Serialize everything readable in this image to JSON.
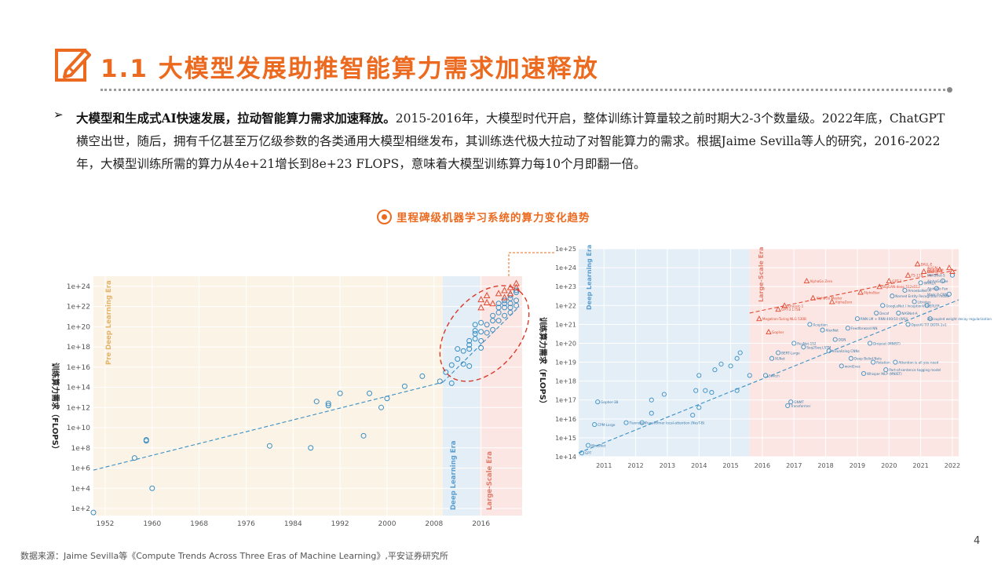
{
  "header": {
    "title": "1.1 大模型发展助推智能算力需求加速释放"
  },
  "intro": {
    "bold": "大模型和生成式AI快速发展，拉动智能算力需求加速释放。",
    "text": "2015-2016年，大模型时代开启，整体训练计算量较之前时期大2-3个数量级。2022年底，ChatGPT横空出世，随后，拥有千亿甚至万亿级参数的各类通用大模型相继发布，其训练迭代极大拉动了对智能算力的需求。根据Jaime Sevilla等人的研究，2016-2022年，大模型训练所需的算力从4e+21增长到8e+23 FLOPS，意味着大模型训练算力每10个月即翻一倍。"
  },
  "chart_title": "里程碑级机器学习系统的算力变化趋势",
  "colors": {
    "accent": "#ec6a1f",
    "blue": "#3a8fc4",
    "red": "#e04a33"
  },
  "chart_data": [
    {
      "type": "scatter",
      "ylabel": "训练算力需求（FLOPS）",
      "x_ticks": [
        "1952",
        "1960",
        "1968",
        "1976",
        "1984",
        "1992",
        "2000",
        "2008",
        "2016"
      ],
      "y_ticks": [
        "1e+2",
        "1e+4",
        "1e+6",
        "1e+8",
        "1e+10",
        "1e+12",
        "1e+14",
        "1e+16",
        "1e+18",
        "1e+20",
        "1e+22",
        "1e+24"
      ],
      "eras": [
        "Pre Deep Learning Era",
        "Deep Learning Era",
        "Large-Scale Era"
      ],
      "y_log10_range": [
        1.3,
        25
      ],
      "x_range": [
        1950,
        2023
      ],
      "pre_deep_learning": [
        [
          1950,
          1.6
        ],
        [
          1957,
          7
        ],
        [
          1959,
          8.7
        ],
        [
          1959,
          8.8
        ],
        [
          1960,
          4
        ],
        [
          1980,
          8.2
        ],
        [
          1987,
          8
        ],
        [
          1988,
          12.6
        ],
        [
          1990,
          12.2
        ],
        [
          1990,
          12.4
        ],
        [
          1992,
          13.4
        ],
        [
          1996,
          9.2
        ],
        [
          1997,
          13.4
        ],
        [
          1999,
          12
        ],
        [
          2000,
          12.9
        ],
        [
          2003,
          14.1
        ],
        [
          2006,
          15.1
        ]
      ],
      "deep_learning": [
        [
          2009,
          14.6
        ],
        [
          2010,
          15.5
        ],
        [
          2011,
          14.4
        ],
        [
          2011,
          16.2
        ],
        [
          2012,
          16.8
        ],
        [
          2012,
          17.8
        ],
        [
          2013,
          16.3
        ],
        [
          2013,
          17.6
        ],
        [
          2014,
          16.1
        ],
        [
          2014,
          17.8
        ],
        [
          2014,
          18.2
        ],
        [
          2014,
          18.6
        ],
        [
          2015,
          18.8
        ],
        [
          2015,
          19.3
        ],
        [
          2015,
          19.6
        ],
        [
          2015,
          20.2
        ],
        [
          2016,
          17.9
        ],
        [
          2016,
          18.6
        ],
        [
          2016,
          19.5
        ],
        [
          2016,
          20.4
        ]
      ],
      "large_scale": [
        [
          2017,
          19.4
        ],
        [
          2017,
          20.2
        ],
        [
          2018,
          19.7
        ],
        [
          2018,
          20.6
        ],
        [
          2018,
          21.1
        ],
        [
          2019,
          20.6
        ],
        [
          2019,
          21.4
        ],
        [
          2019,
          21.9
        ],
        [
          2020,
          21.1
        ],
        [
          2020,
          21.9
        ],
        [
          2020,
          22.6
        ],
        [
          2021,
          21.4
        ],
        [
          2021,
          22.3
        ],
        [
          2021,
          23.1
        ],
        [
          2022,
          22.6
        ],
        [
          2022,
          23.4
        ],
        [
          2022,
          23.6
        ],
        [
          2021,
          22.8
        ],
        [
          2020,
          22.3
        ],
        [
          2022,
          22.1
        ],
        [
          2019,
          22.3
        ],
        [
          2021,
          21.9
        ]
      ],
      "large_scale_triangles": [
        [
          2016,
          22.7
        ],
        [
          2017,
          23.1
        ],
        [
          2018,
          22.3
        ],
        [
          2019,
          23.3
        ],
        [
          2020,
          23.6
        ],
        [
          2021,
          23.9
        ],
        [
          2022,
          24.3
        ],
        [
          2022,
          23.9
        ],
        [
          2021,
          23.3
        ],
        [
          2020,
          22.9
        ],
        [
          2017,
          22.4
        ],
        [
          2016,
          21.9
        ]
      ]
    },
    {
      "type": "scatter",
      "ylabel": "训练算力需求（FLOPS）",
      "x_ticks": [
        "2011",
        "2012",
        "2013",
        "2014",
        "2015",
        "2016",
        "2017",
        "2018",
        "2019",
        "2020",
        "2021",
        "2022"
      ],
      "y_ticks": [
        "1e+14",
        "1e+15",
        "1e+16",
        "1e+17",
        "1e+18",
        "1e+19",
        "1e+20",
        "1e+21",
        "1e+22",
        "1e+23",
        "1e+24",
        "1e+25"
      ],
      "eras": [
        "Deep Learning Era",
        "Large-Scale Era"
      ],
      "x_range": [
        2010.2,
        2022.2
      ],
      "y_log10_range": [
        14,
        25
      ],
      "deep_learning": [
        [
          2010.3,
          14.2
        ],
        [
          2010.5,
          14.6
        ],
        [
          2010.8,
          16.9
        ],
        [
          2010.7,
          15.7
        ],
        [
          2011.7,
          15.8
        ],
        [
          2012.2,
          15.8
        ],
        [
          2012.5,
          17
        ],
        [
          2012.5,
          16.3
        ],
        [
          2012.9,
          17.3
        ],
        [
          2013.8,
          16.2
        ],
        [
          2013.9,
          17.5
        ],
        [
          2014.0,
          18.3
        ],
        [
          2014.2,
          17.5
        ],
        [
          2014.0,
          16.6
        ],
        [
          2014.4,
          17.4
        ],
        [
          2014.5,
          18.6
        ],
        [
          2014.7,
          18.9
        ],
        [
          2015.0,
          18.8
        ],
        [
          2015.2,
          19.2
        ],
        [
          2015.3,
          19.5
        ],
        [
          2015.6,
          18.3
        ],
        [
          2015.2,
          17.5
        ]
      ],
      "large_scale": [
        [
          2016.1,
          18.3
        ],
        [
          2016.3,
          19.2
        ],
        [
          2016.5,
          19.5
        ],
        [
          2016.8,
          16.7
        ],
        [
          2016.9,
          16.9
        ],
        [
          2017.0,
          20.0
        ],
        [
          2017.3,
          19.8
        ],
        [
          2017.5,
          21.0
        ],
        [
          2017.9,
          20.7
        ],
        [
          2018.1,
          19.6
        ],
        [
          2018.3,
          20.2
        ],
        [
          2018.5,
          18.8
        ],
        [
          2018.7,
          20.8
        ],
        [
          2018.8,
          19.2
        ],
        [
          2019.0,
          21.3
        ],
        [
          2019.2,
          18.4
        ],
        [
          2019.4,
          20.0
        ],
        [
          2019.6,
          21.6
        ],
        [
          2019.8,
          22.0
        ],
        [
          2019.9,
          18.6
        ],
        [
          2020.1,
          22.5
        ],
        [
          2020.3,
          21.6
        ],
        [
          2020.5,
          22.8
        ],
        [
          2020.6,
          21.0
        ],
        [
          2020.8,
          22.2
        ],
        [
          2021.0,
          23.2
        ],
        [
          2021.2,
          22.0
        ],
        [
          2021.3,
          21.3
        ],
        [
          2021.5,
          22.9
        ],
        [
          2021.7,
          23.3
        ],
        [
          2021.9,
          22.6
        ],
        [
          2022.0,
          23.6
        ],
        [
          2020.2,
          19.0
        ],
        [
          2019.5,
          19.0
        ]
      ],
      "large_scale_triangles": [
        [
          2015.9,
          21.3
        ],
        [
          2016.2,
          20.6
        ],
        [
          2016.5,
          21.8
        ],
        [
          2016.7,
          22.0
        ],
        [
          2017.4,
          23.3
        ],
        [
          2017.6,
          22.4
        ],
        [
          2018.2,
          22.2
        ],
        [
          2019.1,
          22.7
        ],
        [
          2019.7,
          23.0
        ],
        [
          2020.0,
          23.3
        ],
        [
          2020.6,
          23.6
        ],
        [
          2021.1,
          23.8
        ],
        [
          2021.6,
          23.9
        ],
        [
          2021.9,
          24.0
        ],
        [
          2022.0,
          23.8
        ],
        [
          2020.9,
          24.2
        ]
      ],
      "point_labels": [
        "Megatron-Turing NLG 530B",
        "Gopher",
        "GPT-3 175B",
        "Jurassic-1",
        "AlphaGo Zero",
        "AlphaGo Master",
        "AlphaZero",
        "AlphaStar",
        "BigGAN-deep 512x512",
        "GPT-2",
        "T5-11B",
        "Meena",
        "AlphaFold",
        "ALIGN",
        "CLIP",
        "DALL-E",
        "Switch",
        "XLNet",
        "BERT-Large",
        "Transformer",
        "GNMT",
        "ResNet-152",
        "Seq2Seq LSTM",
        "Xception",
        "AlexNet",
        "Visualizing CNNs",
        "DQN",
        "word2vec",
        "Feedforward NN",
        "Deep Belief Nets",
        "RNN LM + RNN 400/10 (WSJ)",
        "Whisper MLP (MNIST)",
        "Dropout (MNIST)",
        "Decaf",
        "GoogLeNet / InceptionV1",
        "Part-of-sentence tagging model",
        "Named Entity Recognition model",
        "NASNet-A",
        "AmoebaNet-A",
        "OpenAI TI7 DOTA 1v1",
        "Libratus",
        "IMPALA",
        "KEPLER",
        "Decoupled weight decay regularization",
        "AlphaGo Fan",
        "AlphaGo Lee",
        "Mask R-CNN",
        "PNASNet-5",
        "Attention is all you need",
        "Rotation",
        "GPT",
        "MnasNet",
        "Gopher-3B",
        "CPM-Large",
        "Tianrenshi",
        "Transformer local-attention (NesT-B)"
      ]
    }
  ],
  "source": "数据来源：Jaime Sevilla等《Compute Trends Across Three Eras of Machine Learning》,平安证券研究所",
  "page_number": "4"
}
